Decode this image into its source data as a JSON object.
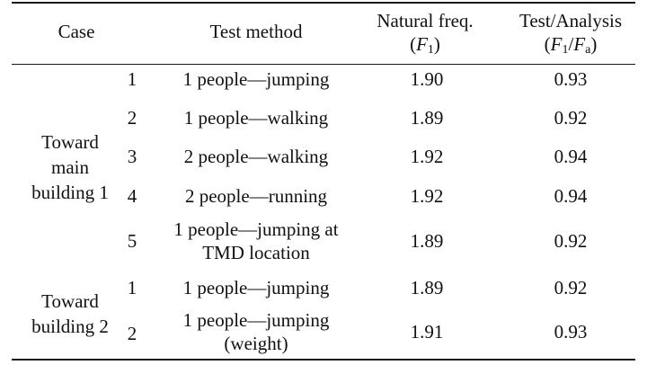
{
  "header": {
    "case": "Case",
    "method": "Test method",
    "freq_line1": "Natural freq.",
    "freq_symbol": "F",
    "freq_sub": "1",
    "ratio_line1": "Test/Analysis",
    "ratio_num": "F",
    "ratio_num_sub": "1",
    "ratio_den": "F",
    "ratio_den_sub": "a"
  },
  "groups": [
    {
      "label_lines": [
        "Toward",
        "main",
        "building 1"
      ],
      "rows": [
        {
          "no": "1",
          "method_lines": [
            "1 people—jumping"
          ],
          "freq": "1.90",
          "ratio": "0.93"
        },
        {
          "no": "2",
          "method_lines": [
            "1 people—walking"
          ],
          "freq": "1.89",
          "ratio": "0.92"
        },
        {
          "no": "3",
          "method_lines": [
            "2 people—walking"
          ],
          "freq": "1.92",
          "ratio": "0.94"
        },
        {
          "no": "4",
          "method_lines": [
            "2 people—running"
          ],
          "freq": "1.92",
          "ratio": "0.94"
        },
        {
          "no": "5",
          "method_lines": [
            "1 people—jumping at",
            "TMD location"
          ],
          "freq": "1.89",
          "ratio": "0.92"
        }
      ]
    },
    {
      "label_lines": [
        "Toward",
        "building 2"
      ],
      "rows": [
        {
          "no": "1",
          "method_lines": [
            "1 people—jumping"
          ],
          "freq": "1.89",
          "ratio": "0.92"
        },
        {
          "no": "2",
          "method_lines": [
            "1 people—jumping",
            "(weight)"
          ],
          "freq": "1.91",
          "ratio": "0.93"
        }
      ]
    }
  ]
}
